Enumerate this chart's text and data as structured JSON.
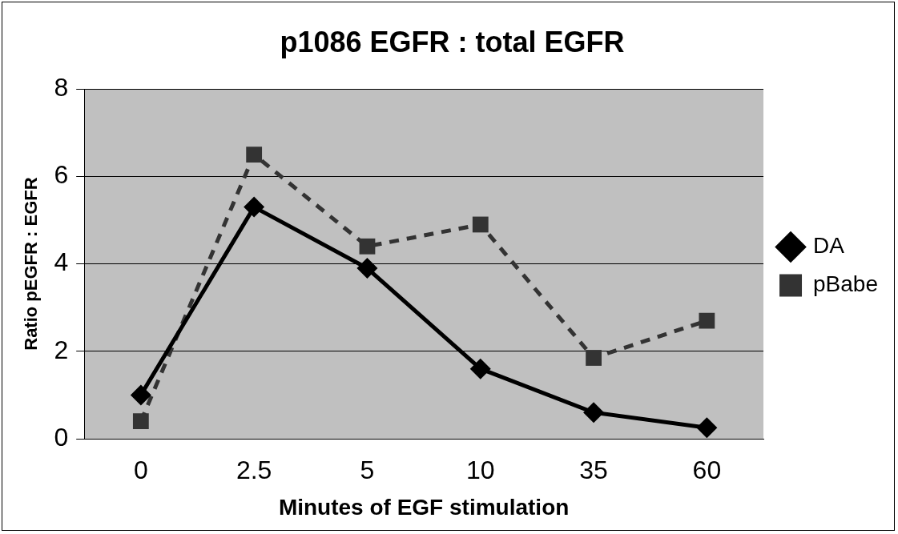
{
  "chart_data": {
    "type": "line",
    "title": "p1086 EGFR : total EGFR",
    "xlabel": "Minutes of EGF stimulation",
    "ylabel": "Ratio pEGFR : EGFR",
    "categories": [
      "0",
      "2.5",
      "5",
      "10",
      "35",
      "60"
    ],
    "series": [
      {
        "name": "DA",
        "color": "#000000",
        "values": [
          1.0,
          5.3,
          3.9,
          1.6,
          0.6,
          0.25
        ],
        "marker": "diamond",
        "line_style": "solid"
      },
      {
        "name": "pBabe",
        "color": "#333333",
        "values": [
          0.4,
          6.5,
          4.4,
          4.9,
          1.85,
          2.7
        ],
        "marker": "square",
        "line_style": "dashed"
      }
    ],
    "ylim": [
      0,
      8
    ],
    "yticks": [
      0,
      2,
      4,
      6,
      8
    ],
    "grid": "y",
    "legend": "right"
  }
}
